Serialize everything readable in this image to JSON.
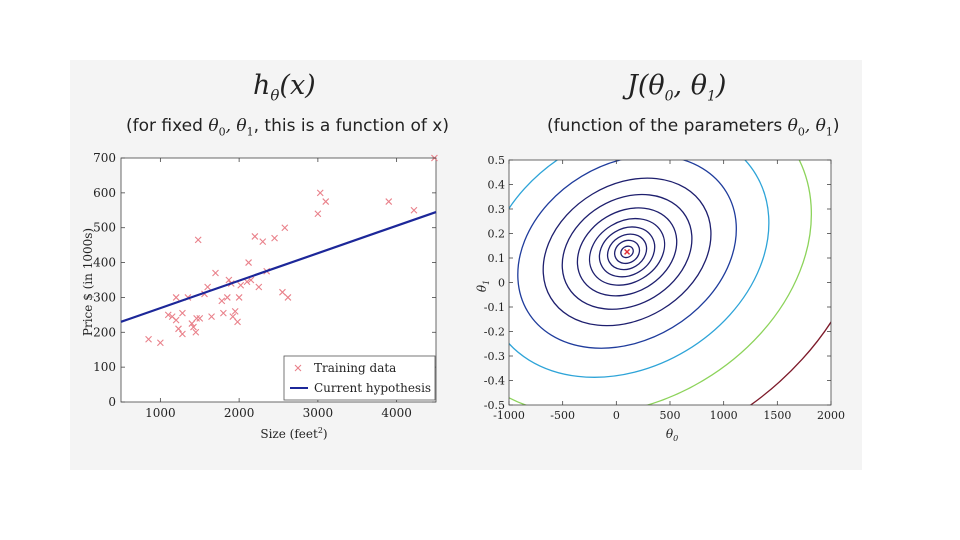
{
  "slide": {
    "left_title": "h",
    "left_title_sub": "θ",
    "left_title_arg": "(x)",
    "left_subtitle_prefix": "(for fixed ",
    "left_subtitle_vars": "θ",
    "left_subtitle_v0": "0",
    "left_subtitle_sep": ", θ",
    "left_subtitle_v1": "1",
    "left_subtitle_suffix": ", this is a function of x)",
    "right_title": "J(θ",
    "right_title_s0": "0",
    "right_title_mid": ", θ",
    "right_title_s1": "1",
    "right_title_end": ")",
    "right_subtitle_prefix": "(function of the parameters ",
    "right_subtitle_vars": "θ",
    "right_subtitle_v0": "0",
    "right_subtitle_sep": ", θ",
    "right_subtitle_v1": "1",
    "right_subtitle_suffix": ")"
  },
  "chart_data": [
    {
      "type": "scatter",
      "title": "",
      "xlabel": "Size (feet",
      "xlabel_sup": "2",
      "xlabel_end": ")",
      "ylabel": "Price $ (in 1000s)",
      "xlim": [
        500,
        4500
      ],
      "ylim": [
        0,
        700
      ],
      "xticks": [
        1000,
        2000,
        3000,
        4000
      ],
      "yticks": [
        0,
        100,
        200,
        300,
        400,
        500,
        600,
        700
      ],
      "legend": {
        "placement": "bottom-right",
        "entries": [
          "Training data",
          "Current hypothesis"
        ]
      },
      "series": [
        {
          "name": "Training data",
          "marker": "x",
          "color": "#e9808a",
          "points": [
            [
              850,
              180
            ],
            [
              1000,
              170
            ],
            [
              1100,
              250
            ],
            [
              1150,
              245
            ],
            [
              1200,
              300
            ],
            [
              1200,
              235
            ],
            [
              1230,
              210
            ],
            [
              1280,
              255
            ],
            [
              1280,
              195
            ],
            [
              1350,
              300
            ],
            [
              1400,
              225
            ],
            [
              1420,
              215
            ],
            [
              1450,
              200
            ],
            [
              1460,
              240
            ],
            [
              1480,
              465
            ],
            [
              1500,
              240
            ],
            [
              1560,
              310
            ],
            [
              1600,
              330
            ],
            [
              1650,
              245
            ],
            [
              1700,
              370
            ],
            [
              1780,
              290
            ],
            [
              1800,
              255
            ],
            [
              1850,
              300
            ],
            [
              1870,
              350
            ],
            [
              1900,
              340
            ],
            [
              1920,
              245
            ],
            [
              1950,
              260
            ],
            [
              1980,
              230
            ],
            [
              2000,
              300
            ],
            [
              2020,
              335
            ],
            [
              2100,
              345
            ],
            [
              2120,
              400
            ],
            [
              2150,
              350
            ],
            [
              2200,
              475
            ],
            [
              2250,
              330
            ],
            [
              2300,
              460
            ],
            [
              2350,
              375
            ],
            [
              2450,
              470
            ],
            [
              2550,
              315
            ],
            [
              2580,
              500
            ],
            [
              2620,
              300
            ],
            [
              3000,
              540
            ],
            [
              3030,
              600
            ],
            [
              3100,
              575
            ],
            [
              3900,
              575
            ],
            [
              4220,
              550
            ],
            [
              4480,
              700
            ]
          ]
        },
        {
          "name": "Current hypothesis",
          "type": "line",
          "color": "#1c2799",
          "x": [
            500,
            4500
          ],
          "y": [
            230,
            545
          ]
        }
      ]
    },
    {
      "type": "contour",
      "title": "",
      "xlabel": "θ",
      "xlabel_sub": "0",
      "ylabel": "θ",
      "ylabel_sub": "1",
      "xlim": [
        -1000,
        2000
      ],
      "ylim": [
        -0.5,
        0.5
      ],
      "xticks": [
        -1000,
        -500,
        0,
        500,
        1000,
        1500,
        2000
      ],
      "yticks": [
        0.5,
        0.4,
        0.3,
        0.2,
        0.1,
        0,
        -0.1,
        -0.2,
        -0.3,
        -0.4,
        -0.5
      ],
      "minimum": {
        "theta0": 100,
        "theta1": 0.125,
        "color": "#e0303a"
      },
      "ellipses": [
        {
          "a": 60,
          "b": 0.022,
          "color": "#1e1f6e"
        },
        {
          "a": 120,
          "b": 0.045,
          "color": "#1e1f6e"
        },
        {
          "a": 190,
          "b": 0.068,
          "color": "#1e1f6e"
        },
        {
          "a": 270,
          "b": 0.095,
          "color": "#1e1f6e"
        },
        {
          "a": 370,
          "b": 0.125,
          "color": "#1e1f6e"
        },
        {
          "a": 490,
          "b": 0.165,
          "color": "#1e1f6e"
        },
        {
          "a": 640,
          "b": 0.215,
          "color": "#1e1f6e"
        },
        {
          "a": 830,
          "b": 0.275,
          "color": "#1e1f6e"
        },
        {
          "a": 1080,
          "b": 0.36,
          "color": "#1f3c9c"
        },
        {
          "a": 1400,
          "b": 0.47,
          "color": "#2ea4d8"
        },
        {
          "a": 1820,
          "b": 0.61,
          "color": "#8cd35a"
        },
        {
          "a": 2400,
          "b": 0.8,
          "color": "#7d1a2a"
        }
      ],
      "ellipse_angle_deg": -31
    }
  ]
}
